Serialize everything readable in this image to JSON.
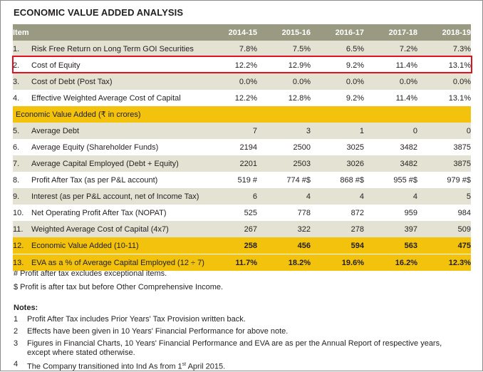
{
  "title": "ECONOMIC VALUE ADDED ANALYSIS",
  "header": {
    "item": "Item",
    "years": [
      "2014-15",
      "2015-16",
      "2016-17",
      "2017-18",
      "2018-19"
    ]
  },
  "rows_top": [
    {
      "no": "1.",
      "label": "Risk Free Return on Long Term GOI Securities",
      "values": [
        "7.8%",
        "7.5%",
        "6.5%",
        "7.2%",
        "7.3%"
      ]
    },
    {
      "no": "2.",
      "label": "Cost of Equity",
      "values": [
        "12.2%",
        "12.9%",
        "9.2%",
        "11.4%",
        "13.1%"
      ]
    },
    {
      "no": "3.",
      "label": "Cost of Debt (Post Tax)",
      "values": [
        "0.0%",
        "0.0%",
        "0.0%",
        "0.0%",
        "0.0%"
      ]
    },
    {
      "no": "4.",
      "label": "Effective Weighted Average Cost of Capital",
      "values": [
        "12.2%",
        "12.8%",
        "9.2%",
        "11.4%",
        "13.1%"
      ]
    }
  ],
  "section_label": "Economic Value Added (₹ in crores)",
  "rows_bottom": [
    {
      "no": "5.",
      "label": "Average Debt",
      "values": [
        "7",
        "3",
        "1",
        "0",
        "0"
      ]
    },
    {
      "no": "6.",
      "label": "Average Equity (Shareholder Funds)",
      "values": [
        "2194",
        "2500",
        "3025",
        "3482",
        "3875"
      ]
    },
    {
      "no": "7.",
      "label": "Average Capital Employed (Debt + Equity)",
      "values": [
        "2201",
        "2503",
        "3026",
        "3482",
        "3875"
      ]
    },
    {
      "no": "8.",
      "label": "Profit After Tax (as per P&L account)",
      "values": [
        "519 #",
        "774 #$",
        "868 #$",
        "955 #$",
        "979 #$"
      ]
    },
    {
      "no": "9.",
      "label": "Interest (as per P&L account, net of Income Tax)",
      "values": [
        "6",
        "4",
        "4",
        "4",
        "5"
      ]
    },
    {
      "no": "10.",
      "label": "Net Operating Profit After Tax (NOPAT)",
      "values": [
        "525",
        "778",
        "872",
        "959",
        "984"
      ]
    },
    {
      "no": "11.",
      "label": "Weighted Average Cost of Capital (4x7)",
      "values": [
        "267",
        "322",
        "278",
        "397",
        "509"
      ]
    }
  ],
  "rows_gold": [
    {
      "no": "12.",
      "label": "Economic Value Added (10-11)",
      "values": [
        "258",
        "456",
        "594",
        "563",
        "475"
      ]
    },
    {
      "no": "13.",
      "label": "EVA as a % of Average Capital Employed (12 ÷ 7)",
      "values": [
        "11.7%",
        "18.2%",
        "19.6%",
        "16.2%",
        "12.3%"
      ]
    }
  ],
  "footnotes": [
    "# Profit after tax excludes exceptional items.",
    "$ Profit is after tax but before Other Comprehensive Income."
  ],
  "notes_title": "Notes:",
  "notes": [
    {
      "no": "1",
      "text": "Profit After Tax includes Prior Years' Tax Provision written back."
    },
    {
      "no": "2",
      "text": "Effects have been given in 10 Years' Financial Performance for above note."
    },
    {
      "no": "3",
      "text": "Figures in Financial Charts, 10 Years' Financial Performance and EVA are as per the Annual Report of respective years, except where stated otherwise."
    },
    {
      "no": "4",
      "text_before": "The Company transitioned into Ind As from 1",
      "sup": "st",
      "text_after": " April 2015."
    }
  ],
  "colors": {
    "header_bg": "#9a9a83",
    "shade_bg": "#e4e3d3",
    "gold_bg": "#f2c20c",
    "highlight_border": "#e0121f"
  }
}
